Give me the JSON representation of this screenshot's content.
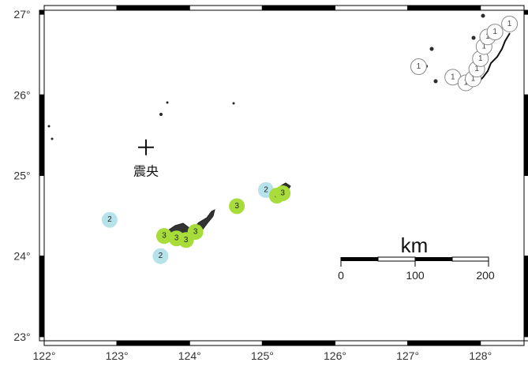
{
  "map": {
    "lon_range": [
      122,
      128.6
    ],
    "lat_range": [
      22.95,
      27.05
    ],
    "x_ticks": [
      {
        "value": 122,
        "label": "122°"
      },
      {
        "value": 123,
        "label": "123°"
      },
      {
        "value": 124,
        "label": "124°"
      },
      {
        "value": 125,
        "label": "125°"
      },
      {
        "value": 126,
        "label": "126°"
      },
      {
        "value": 127,
        "label": "127°"
      },
      {
        "value": 128,
        "label": "128°"
      }
    ],
    "y_ticks": [
      {
        "value": 27,
        "label": "27°"
      },
      {
        "value": 26,
        "label": "26°"
      },
      {
        "value": 25,
        "label": "25°"
      },
      {
        "value": 24,
        "label": "24°"
      },
      {
        "value": 23,
        "label": "23°"
      }
    ],
    "epicenter": {
      "lon": 123.4,
      "lat": 25.35,
      "label": "震央"
    },
    "scale_bar": {
      "unit_label": "km",
      "ticks": [
        "0",
        "100",
        "200"
      ]
    },
    "colors": {
      "level_1": "#ffffff",
      "level_2": "#b6e2ea",
      "level_3": "#a8dc3a",
      "frame": "#000000"
    },
    "intensity_markers": [
      {
        "lon": 122.9,
        "lat": 24.45,
        "value": "2",
        "level": 2
      },
      {
        "lon": 123.6,
        "lat": 24.0,
        "value": "2",
        "level": 2
      },
      {
        "lon": 123.65,
        "lat": 24.25,
        "value": "3",
        "level": 3
      },
      {
        "lon": 123.82,
        "lat": 24.22,
        "value": "3",
        "level": 3
      },
      {
        "lon": 123.95,
        "lat": 24.2,
        "value": "3",
        "level": 3
      },
      {
        "lon": 124.08,
        "lat": 24.3,
        "value": "3",
        "level": 3
      },
      {
        "lon": 124.65,
        "lat": 24.62,
        "value": "3",
        "level": 3
      },
      {
        "lon": 125.05,
        "lat": 24.82,
        "value": "2",
        "level": 2
      },
      {
        "lon": 125.2,
        "lat": 24.75,
        "value": "3",
        "level": 3
      },
      {
        "lon": 125.28,
        "lat": 24.78,
        "value": "3",
        "level": 3
      },
      {
        "lon": 127.15,
        "lat": 26.35,
        "value": "1",
        "level": 1
      },
      {
        "lon": 127.62,
        "lat": 26.22,
        "value": "1",
        "level": 1
      },
      {
        "lon": 127.8,
        "lat": 26.15,
        "value": "1",
        "level": 1
      },
      {
        "lon": 127.9,
        "lat": 26.2,
        "value": "1",
        "level": 1
      },
      {
        "lon": 127.95,
        "lat": 26.32,
        "value": "1",
        "level": 1
      },
      {
        "lon": 128.0,
        "lat": 26.45,
        "value": "1",
        "level": 1
      },
      {
        "lon": 128.05,
        "lat": 26.6,
        "value": "1",
        "level": 1
      },
      {
        "lon": 128.1,
        "lat": 26.72,
        "value": "1",
        "level": 1
      },
      {
        "lon": 128.2,
        "lat": 26.78,
        "value": "1",
        "level": 1
      },
      {
        "lon": 128.4,
        "lat": 26.88,
        "value": "1",
        "level": 1
      }
    ]
  }
}
